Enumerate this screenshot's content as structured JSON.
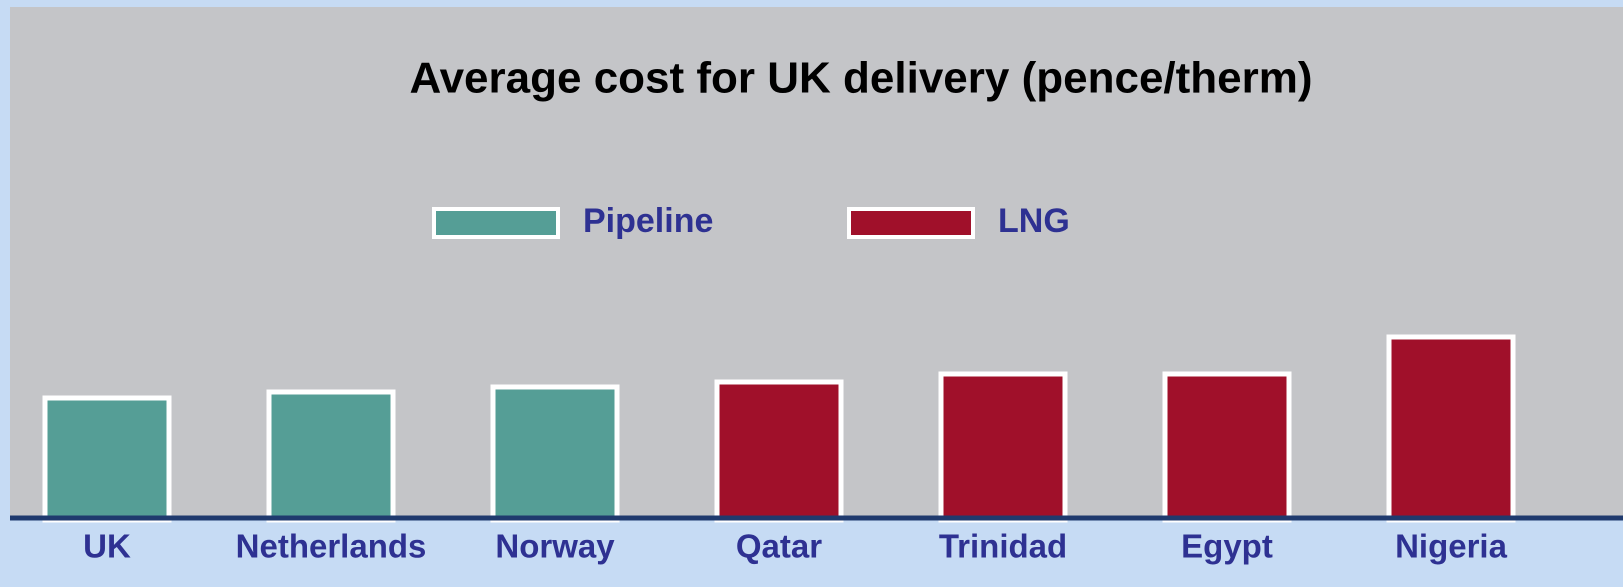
{
  "chart_data": {
    "type": "bar",
    "title": "Average cost for UK delivery (pence/therm)",
    "categories": [
      "UK",
      "Netherlands",
      "Norway",
      "Qatar",
      "Trinidad",
      "Egypt",
      "Nigeria"
    ],
    "series": [
      {
        "name": "Pipeline",
        "color": "#559e96",
        "values": [
          11.9,
          12.5,
          13.0,
          null,
          null,
          null,
          null
        ]
      },
      {
        "name": "LNG",
        "color": "#a0102a",
        "values": [
          null,
          null,
          null,
          13.5,
          14.3,
          14.3,
          18.0
        ]
      }
    ],
    "ylim": [
      0,
      50
    ]
  }
}
